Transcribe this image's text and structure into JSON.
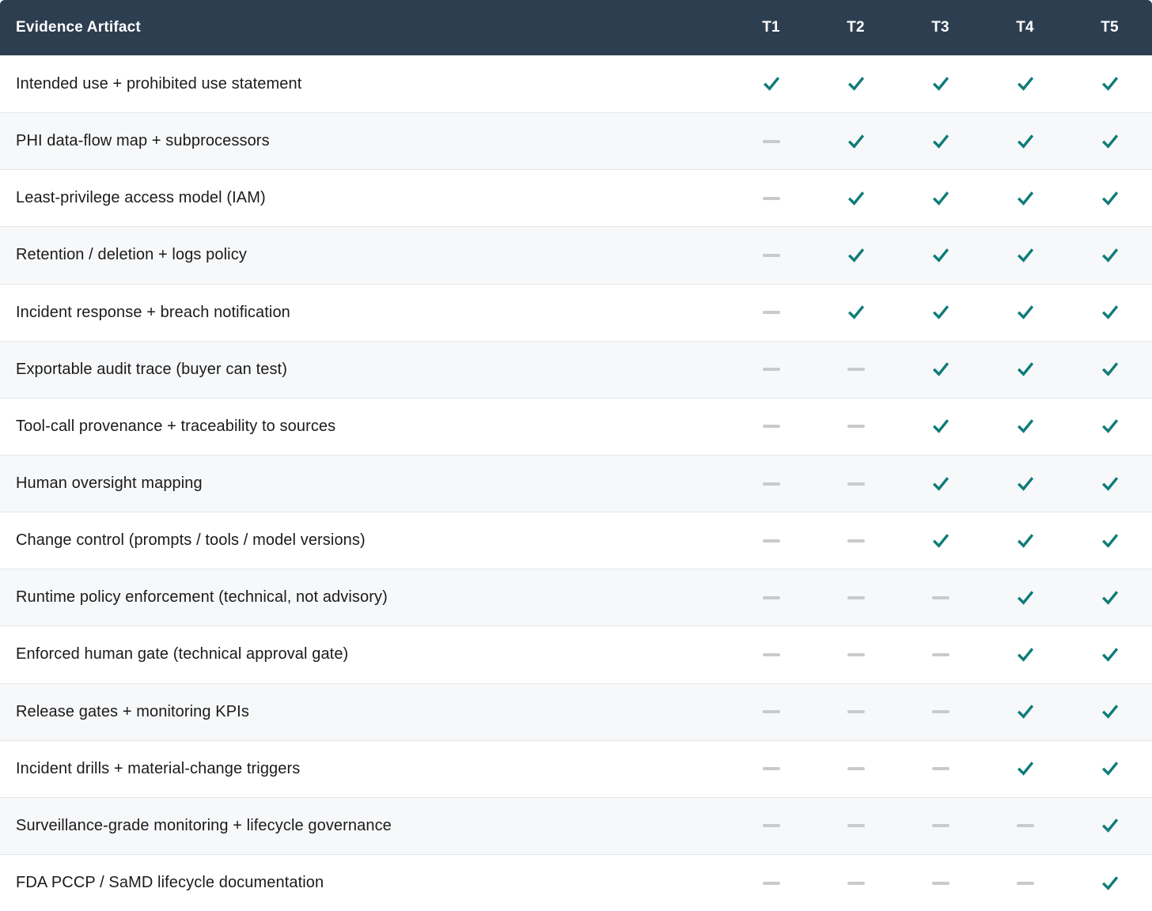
{
  "table": {
    "header": {
      "artifact_label": "Evidence Artifact",
      "tiers": [
        "T1",
        "T2",
        "T3",
        "T4",
        "T5"
      ]
    },
    "rows": [
      {
        "label": "Intended use + prohibited use statement",
        "tiers": [
          true,
          true,
          true,
          true,
          true
        ]
      },
      {
        "label": "PHI data-flow map + subprocessors",
        "tiers": [
          false,
          true,
          true,
          true,
          true
        ]
      },
      {
        "label": "Least-privilege access model (IAM)",
        "tiers": [
          false,
          true,
          true,
          true,
          true
        ]
      },
      {
        "label": "Retention / deletion + logs policy",
        "tiers": [
          false,
          true,
          true,
          true,
          true
        ]
      },
      {
        "label": "Incident response + breach notification",
        "tiers": [
          false,
          true,
          true,
          true,
          true
        ]
      },
      {
        "label": "Exportable audit trace (buyer can test)",
        "tiers": [
          false,
          false,
          true,
          true,
          true
        ]
      },
      {
        "label": "Tool-call provenance + traceability to sources",
        "tiers": [
          false,
          false,
          true,
          true,
          true
        ]
      },
      {
        "label": "Human oversight mapping",
        "tiers": [
          false,
          false,
          true,
          true,
          true
        ]
      },
      {
        "label": "Change control (prompts / tools / model versions)",
        "tiers": [
          false,
          false,
          true,
          true,
          true
        ]
      },
      {
        "label": "Runtime policy enforcement (technical, not advisory)",
        "tiers": [
          false,
          false,
          false,
          true,
          true
        ]
      },
      {
        "label": "Enforced human gate (technical approval gate)",
        "tiers": [
          false,
          false,
          false,
          true,
          true
        ]
      },
      {
        "label": "Release gates + monitoring KPIs",
        "tiers": [
          false,
          false,
          false,
          true,
          true
        ]
      },
      {
        "label": "Incident drills + material-change triggers",
        "tiers": [
          false,
          false,
          false,
          true,
          true
        ]
      },
      {
        "label": "Surveillance-grade monitoring + lifecycle governance",
        "tiers": [
          false,
          false,
          false,
          false,
          true
        ]
      },
      {
        "label": "FDA PCCP / SaMD lifecycle documentation",
        "tiers": [
          false,
          false,
          false,
          false,
          true
        ]
      }
    ],
    "cell_symbols": {
      "included": "check-icon",
      "not_included": "dash-icon"
    },
    "colors": {
      "header_bg": "#2d3e50",
      "header_text": "#ffffff",
      "check": "#0e7c78",
      "dash": "#c9cacb",
      "row_bg": "#ffffff",
      "row_alt_bg": "#f7f8fa",
      "divider": "#e5e6e8",
      "label_text": "#1b1b1b"
    }
  }
}
